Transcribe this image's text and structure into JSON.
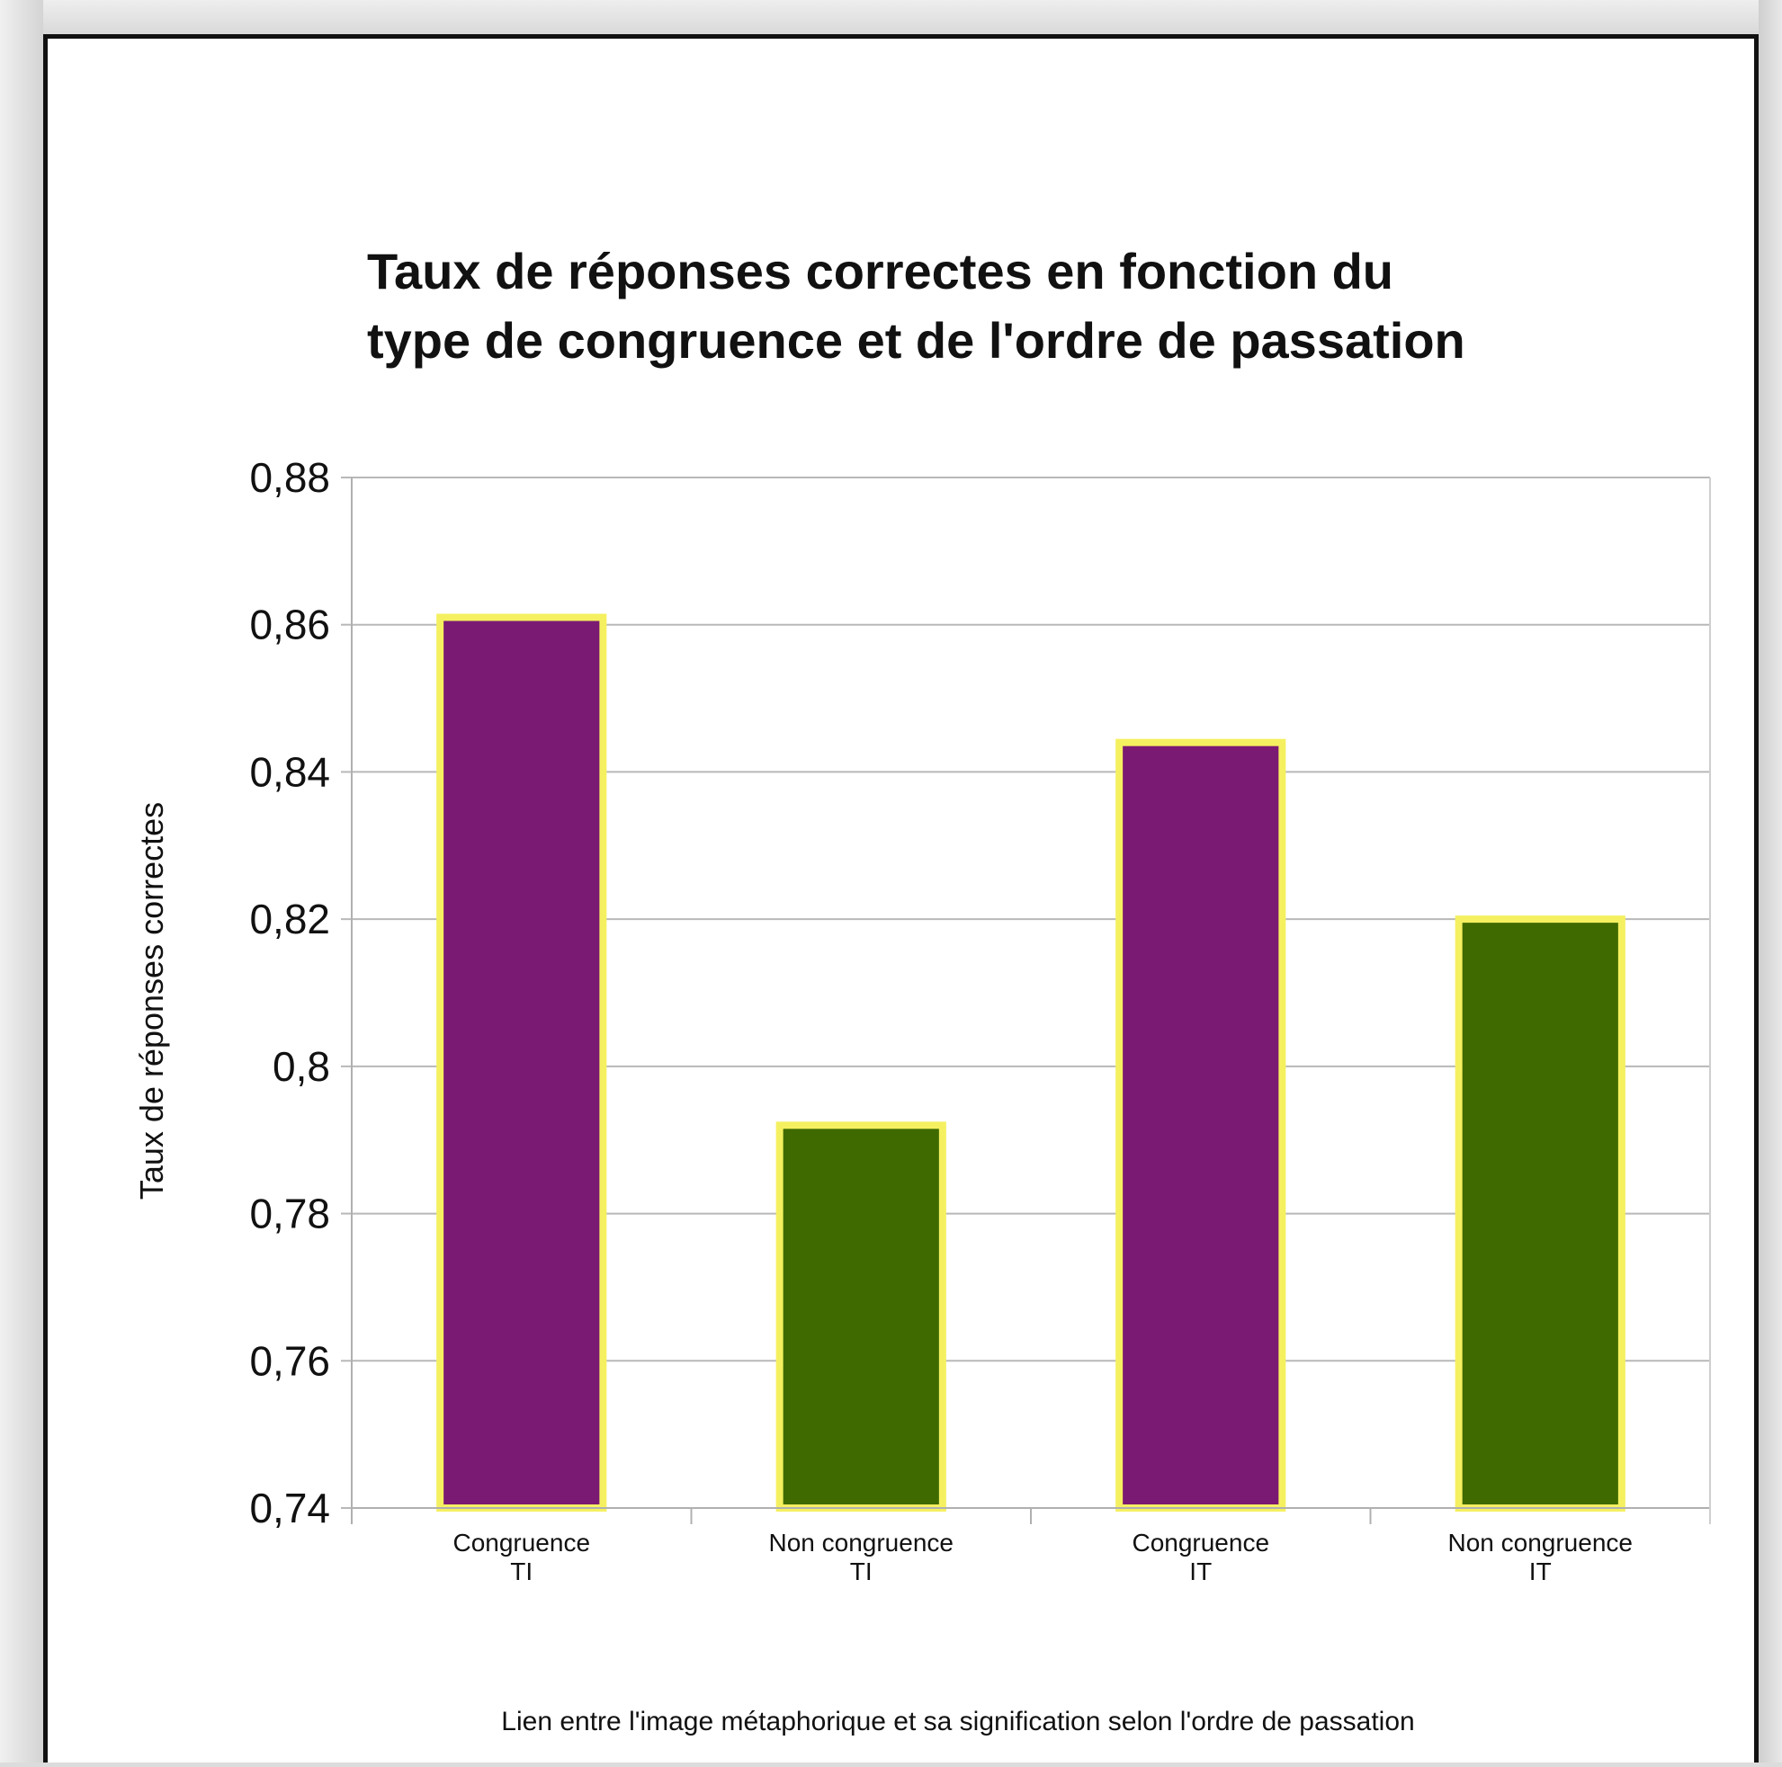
{
  "chart_data": {
    "type": "bar",
    "title_lines": [
      "Taux de réponses correctes en fonction du",
      "type de congruence et de l'ordre de passation"
    ],
    "ylabel": "Taux de réponses correctes",
    "xlabel": "Lien entre l'image métaphorique et sa signification selon l'ordre de passation",
    "ylim": [
      0.74,
      0.88
    ],
    "yticks": [
      0.74,
      0.76,
      0.78,
      0.8,
      0.82,
      0.84,
      0.86,
      0.88
    ],
    "ytick_labels": [
      "0,74",
      "0,76",
      "0,78",
      "0,8",
      "0,82",
      "0,84",
      "0,86",
      "0,88"
    ],
    "grid": true,
    "legend": "none",
    "categories": [
      [
        "Congruence",
        "TI"
      ],
      [
        "Non congruence",
        "TI"
      ],
      [
        "Congruence",
        "IT"
      ],
      [
        "Non congruence",
        "IT"
      ]
    ],
    "values": [
      0.861,
      0.792,
      0.844,
      0.82
    ],
    "colors": [
      "#7a1a72",
      "#3f6a00",
      "#7a1a72",
      "#3f6a00"
    ],
    "bar_outline_color": "#f5f060",
    "gridline_color": "#b8b8b8"
  }
}
